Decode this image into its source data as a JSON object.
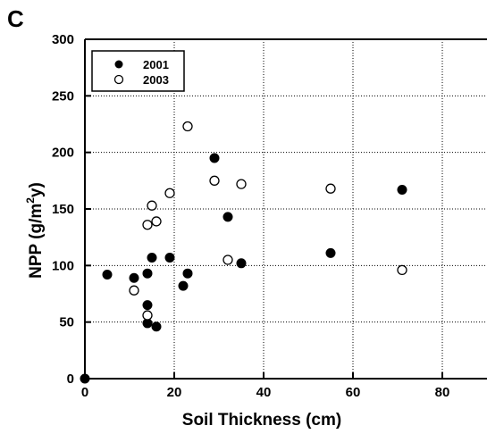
{
  "chart_data": {
    "type": "scatter",
    "panel_label": "C",
    "xlabel": "Soil Thickness (cm)",
    "ylabel": {
      "prefix": "NPP (g/m",
      "sup": "2",
      "suffix": "y)"
    },
    "xlim": [
      0,
      90
    ],
    "ylim": [
      0,
      300
    ],
    "xticks": [
      0,
      20,
      40,
      60,
      80
    ],
    "yticks": [
      0,
      50,
      100,
      150,
      200,
      250,
      300
    ],
    "grid": true,
    "legend_position": "top-left",
    "series": [
      {
        "name": "2001",
        "marker": "filled-circle",
        "color": "#000000",
        "points": [
          [
            0,
            0
          ],
          [
            5,
            92
          ],
          [
            11,
            89
          ],
          [
            14,
            93
          ],
          [
            14,
            65
          ],
          [
            14,
            49
          ],
          [
            15,
            107
          ],
          [
            16,
            46
          ],
          [
            19,
            107
          ],
          [
            22,
            82
          ],
          [
            23,
            93
          ],
          [
            29,
            195
          ],
          [
            32,
            143
          ],
          [
            35,
            102
          ],
          [
            55,
            111
          ],
          [
            71,
            167
          ]
        ]
      },
      {
        "name": "2003",
        "marker": "open-circle",
        "color": "#000000",
        "points": [
          [
            11,
            78
          ],
          [
            14,
            56
          ],
          [
            14,
            136
          ],
          [
            15,
            153
          ],
          [
            16,
            139
          ],
          [
            19,
            164
          ],
          [
            23,
            223
          ],
          [
            29,
            175
          ],
          [
            32,
            105
          ],
          [
            35,
            172
          ],
          [
            55,
            168
          ],
          [
            71,
            96
          ]
        ]
      }
    ]
  }
}
